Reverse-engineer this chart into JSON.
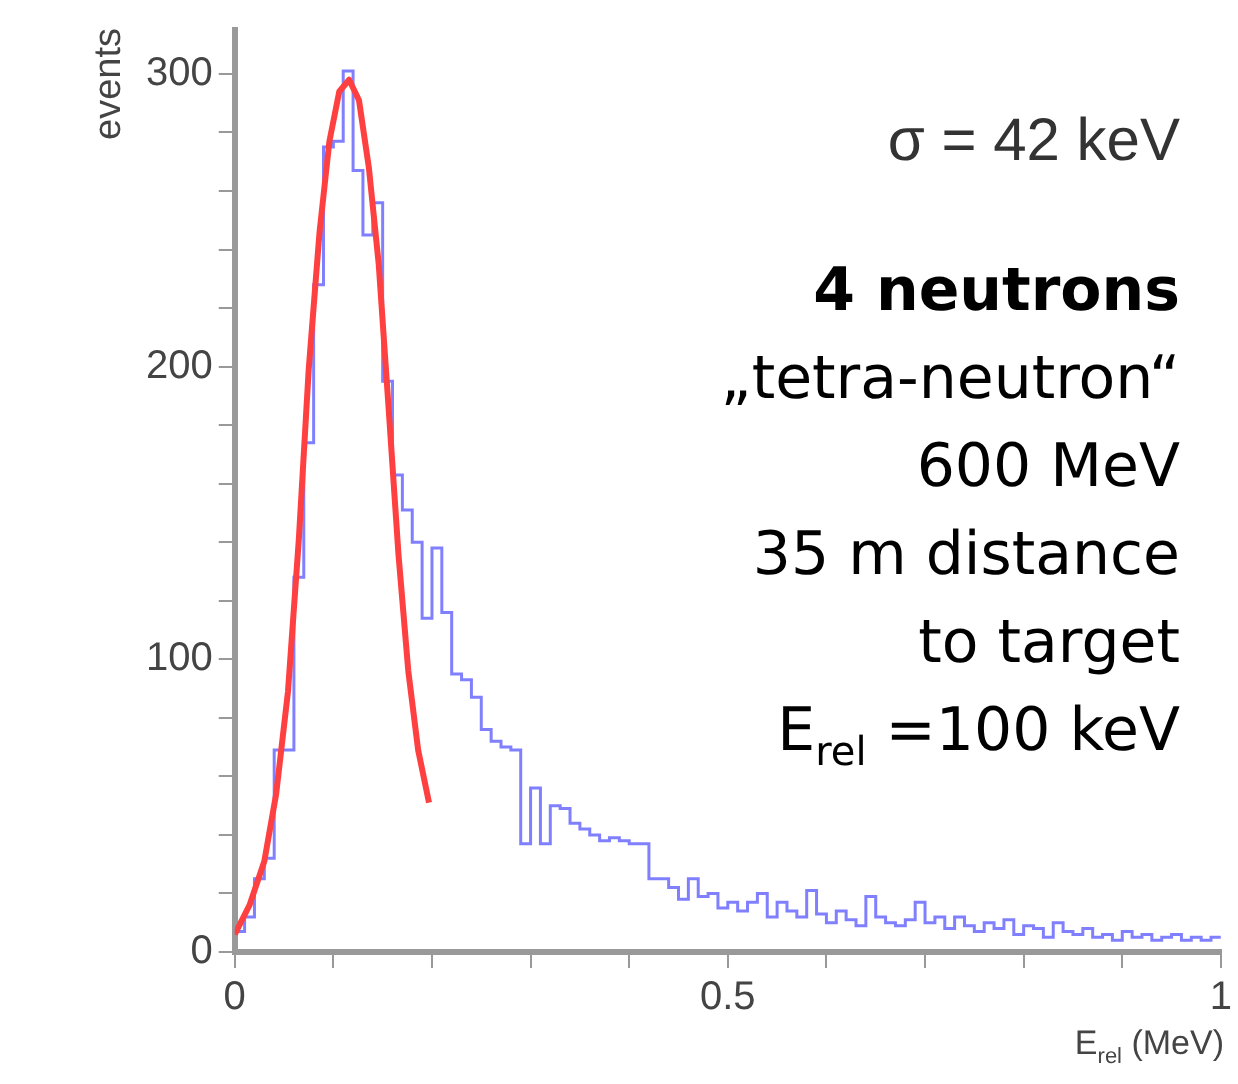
{
  "chart_data": {
    "type": "histogram",
    "xlabel": "E$_{rel}$ (MeV)",
    "ylabel": "events",
    "annotations": [
      "σ = 42 keV",
      "4 neutrons",
      "„tetra-neutron“",
      "600 MeV",
      "35 m distance",
      "to target",
      "E$_{rel}$ =100 keV"
    ],
    "bins": [
      0,
      0.01,
      0.02,
      0.03,
      0.04,
      0.05,
      0.06,
      0.07,
      0.08,
      0.09,
      0.1,
      0.11,
      0.12,
      0.13,
      0.14,
      0.15,
      0.16,
      0.17,
      0.18,
      0.19,
      0.2,
      0.21,
      0.22,
      0.23,
      0.24,
      0.25,
      0.26,
      0.27,
      0.28,
      0.29,
      0.3,
      0.31,
      0.32,
      0.33,
      0.34,
      0.35,
      0.36,
      0.37,
      0.38,
      0.39,
      0.4,
      0.41,
      0.42,
      0.43,
      0.44,
      0.45,
      0.46,
      0.47,
      0.48,
      0.49,
      0.5,
      0.51,
      0.52,
      0.53,
      0.54,
      0.55,
      0.56,
      0.57,
      0.58,
      0.59,
      0.6,
      0.61,
      0.62,
      0.63,
      0.64,
      0.65,
      0.66,
      0.67,
      0.68,
      0.69,
      0.7,
      0.71,
      0.72,
      0.73,
      0.74,
      0.75,
      0.76,
      0.77,
      0.78,
      0.79,
      0.8,
      0.81,
      0.82,
      0.83,
      0.84,
      0.85,
      0.86,
      0.87,
      0.88,
      0.89,
      0.9,
      0.91,
      0.92,
      0.93,
      0.94,
      0.95,
      0.96,
      0.97,
      0.98,
      0.99,
      1
    ],
    "series": [
      {
        "type": "histogram",
        "color": "#8080ff",
        "values": [
          7,
          12,
          25,
          32,
          69,
          69,
          128,
          174,
          228,
          275,
          277,
          301,
          267,
          245,
          256,
          195,
          163,
          151,
          140,
          114,
          138,
          116,
          95,
          93,
          87,
          76,
          72,
          70,
          69,
          37,
          56,
          37,
          50,
          49,
          44,
          42,
          40,
          38,
          39,
          38,
          37,
          37,
          25,
          25,
          22,
          18,
          25,
          19,
          20,
          15,
          17,
          14,
          17,
          20,
          12,
          17,
          14,
          12,
          21,
          13,
          10,
          14,
          11,
          9,
          19,
          12,
          10,
          9,
          11,
          17,
          10,
          12,
          8,
          12,
          9,
          7,
          10,
          8,
          11,
          6,
          9,
          8,
          5,
          10,
          7,
          6,
          8,
          5,
          6,
          4,
          7,
          5,
          6,
          4,
          5,
          6,
          4,
          5,
          4,
          5
        ]
      },
      {
        "type": "line",
        "color": "#ff4040",
        "x": [
          0,
          0.015,
          0.03,
          0.042,
          0.054,
          0.065,
          0.075,
          0.086,
          0.096,
          0.106,
          0.116,
          0.126,
          0.136,
          0.146,
          0.156,
          0.166,
          0.176,
          0.186,
          0.197
        ],
        "values": [
          6,
          16,
          31,
          54,
          89,
          141,
          199,
          246,
          277,
          294,
          298,
          291,
          268,
          235,
          186,
          136,
          96,
          69,
          51
        ]
      }
    ],
    "xlim": [
      0,
      1
    ],
    "xticks": [
      0,
      {
        "value": 0.1,
        "label": null
      },
      {
        "value": 0.2,
        "label": null
      },
      {
        "value": 0.3,
        "label": null
      },
      {
        "value": 0.4,
        "label": null
      },
      0.5,
      {
        "value": 0.6,
        "label": null
      },
      {
        "value": 0.7,
        "label": null
      },
      {
        "value": 0.8,
        "label": null
      },
      {
        "value": 0.9,
        "label": null
      },
      1
    ],
    "ylim": [
      0,
      315
    ],
    "yticks": [
      0,
      {
        "value": 20,
        "label": null
      },
      {
        "value": 40,
        "label": null
      },
      {
        "value": 60,
        "label": null
      },
      {
        "value": 80,
        "label": null
      },
      100,
      {
        "value": 120,
        "label": null
      },
      {
        "value": 140,
        "label": null
      },
      {
        "value": 160,
        "label": null
      },
      {
        "value": 180,
        "label": null
      },
      200,
      {
        "value": 220,
        "label": null
      },
      {
        "value": 240,
        "label": null
      },
      {
        "value": 260,
        "label": null
      },
      {
        "value": 280,
        "label": null
      },
      300
    ]
  }
}
